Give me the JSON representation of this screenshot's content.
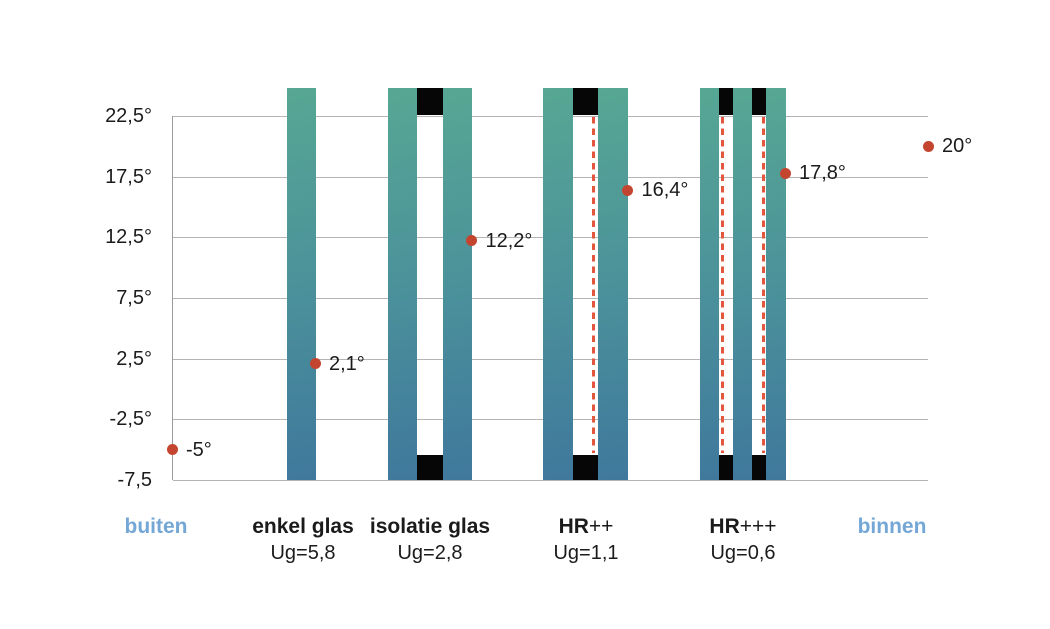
{
  "chart_data": {
    "type": "scatter",
    "title": "",
    "y_axis": {
      "min": -7.5,
      "max": 22.5,
      "grid": true,
      "ticks": [
        {
          "value": 22.5,
          "label": "22,5°"
        },
        {
          "value": 17.5,
          "label": "17,5°"
        },
        {
          "value": 12.5,
          "label": "12,5°"
        },
        {
          "value": 7.5,
          "label": "7,5°"
        },
        {
          "value": 2.5,
          "label": "2,5°"
        },
        {
          "value": -2.5,
          "label": "-2,5°"
        },
        {
          "value": -7.5,
          "label": "-7,5"
        }
      ]
    },
    "categories": [
      {
        "label": "buiten",
        "label_suffix": "",
        "sub_label": "",
        "accent": true,
        "panes": 0,
        "coatings": 0,
        "value": -5,
        "point_label": "-5°"
      },
      {
        "label": "enkel glas",
        "label_suffix": "",
        "sub_label": "Ug=5,8",
        "accent": false,
        "panes": 1,
        "coatings": 0,
        "value": 2.1,
        "point_label": "2,1°"
      },
      {
        "label": "isolatie glas",
        "label_suffix": "",
        "sub_label": "Ug=2,8",
        "accent": false,
        "panes": 2,
        "coatings": 0,
        "value": 12.2,
        "point_label": "12,2°"
      },
      {
        "label": "HR",
        "label_suffix": "++",
        "sub_label": "Ug=1,1",
        "accent": false,
        "panes": 2,
        "coatings": 1,
        "value": 16.4,
        "point_label": "16,4°"
      },
      {
        "label": "HR",
        "label_suffix": "+++",
        "sub_label": "Ug=0,6",
        "accent": false,
        "panes": 3,
        "coatings": 2,
        "value": 17.8,
        "point_label": "17,8°"
      },
      {
        "label": "binnen",
        "label_suffix": "",
        "sub_label": "",
        "accent": true,
        "panes": 0,
        "coatings": 0,
        "value": 20,
        "point_label": "20°"
      }
    ],
    "colors": {
      "pane_gradient_top": "#57a794",
      "pane_gradient_mid": "#4a8f9b",
      "pane_gradient_bottom": "#3f789c",
      "spacer": "#060606",
      "point": "#c4452f",
      "coating_line": "#e2573e",
      "gridline": "#b4b4b4",
      "axis_line": "#9a9a9a",
      "axis_text": "#1b1b1b",
      "accent_text": "#74a7d6"
    }
  }
}
